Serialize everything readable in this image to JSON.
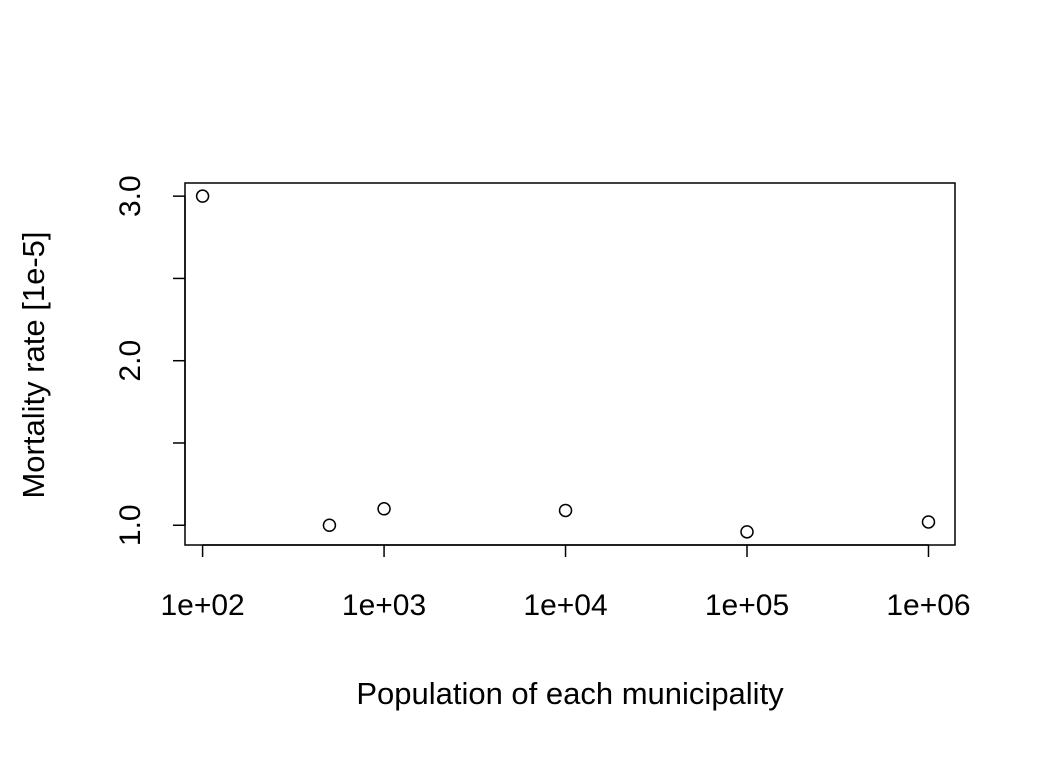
{
  "chart_data": {
    "type": "scatter",
    "title": "",
    "xlabel": "Population of each municipality",
    "ylabel": "Mortality rate [1e-5]",
    "x_scale": "log10",
    "xlim": [
      80,
      1400000
    ],
    "ylim": [
      0.88,
      3.08
    ],
    "x_ticks": [
      {
        "value": 100,
        "label": "1e+02"
      },
      {
        "value": 1000,
        "label": "1e+03"
      },
      {
        "value": 10000,
        "label": "1e+04"
      },
      {
        "value": 100000,
        "label": "1e+05"
      },
      {
        "value": 1000000,
        "label": "1e+06"
      }
    ],
    "y_ticks": [
      {
        "value": 1.0,
        "label": "1.0"
      },
      {
        "value": 1.5,
        "label": ""
      },
      {
        "value": 2.0,
        "label": "2.0"
      },
      {
        "value": 2.5,
        "label": ""
      },
      {
        "value": 3.0,
        "label": "3.0"
      }
    ],
    "grid": false,
    "legend": "none",
    "marker": "open-circle",
    "series": [
      {
        "points": [
          {
            "x": 100,
            "y": 3.0
          },
          {
            "x": 500,
            "y": 1.0
          },
          {
            "x": 1000,
            "y": 1.1
          },
          {
            "x": 10000,
            "y": 1.09
          },
          {
            "x": 100000,
            "y": 0.96
          },
          {
            "x": 1000000,
            "y": 1.02
          }
        ]
      }
    ]
  }
}
